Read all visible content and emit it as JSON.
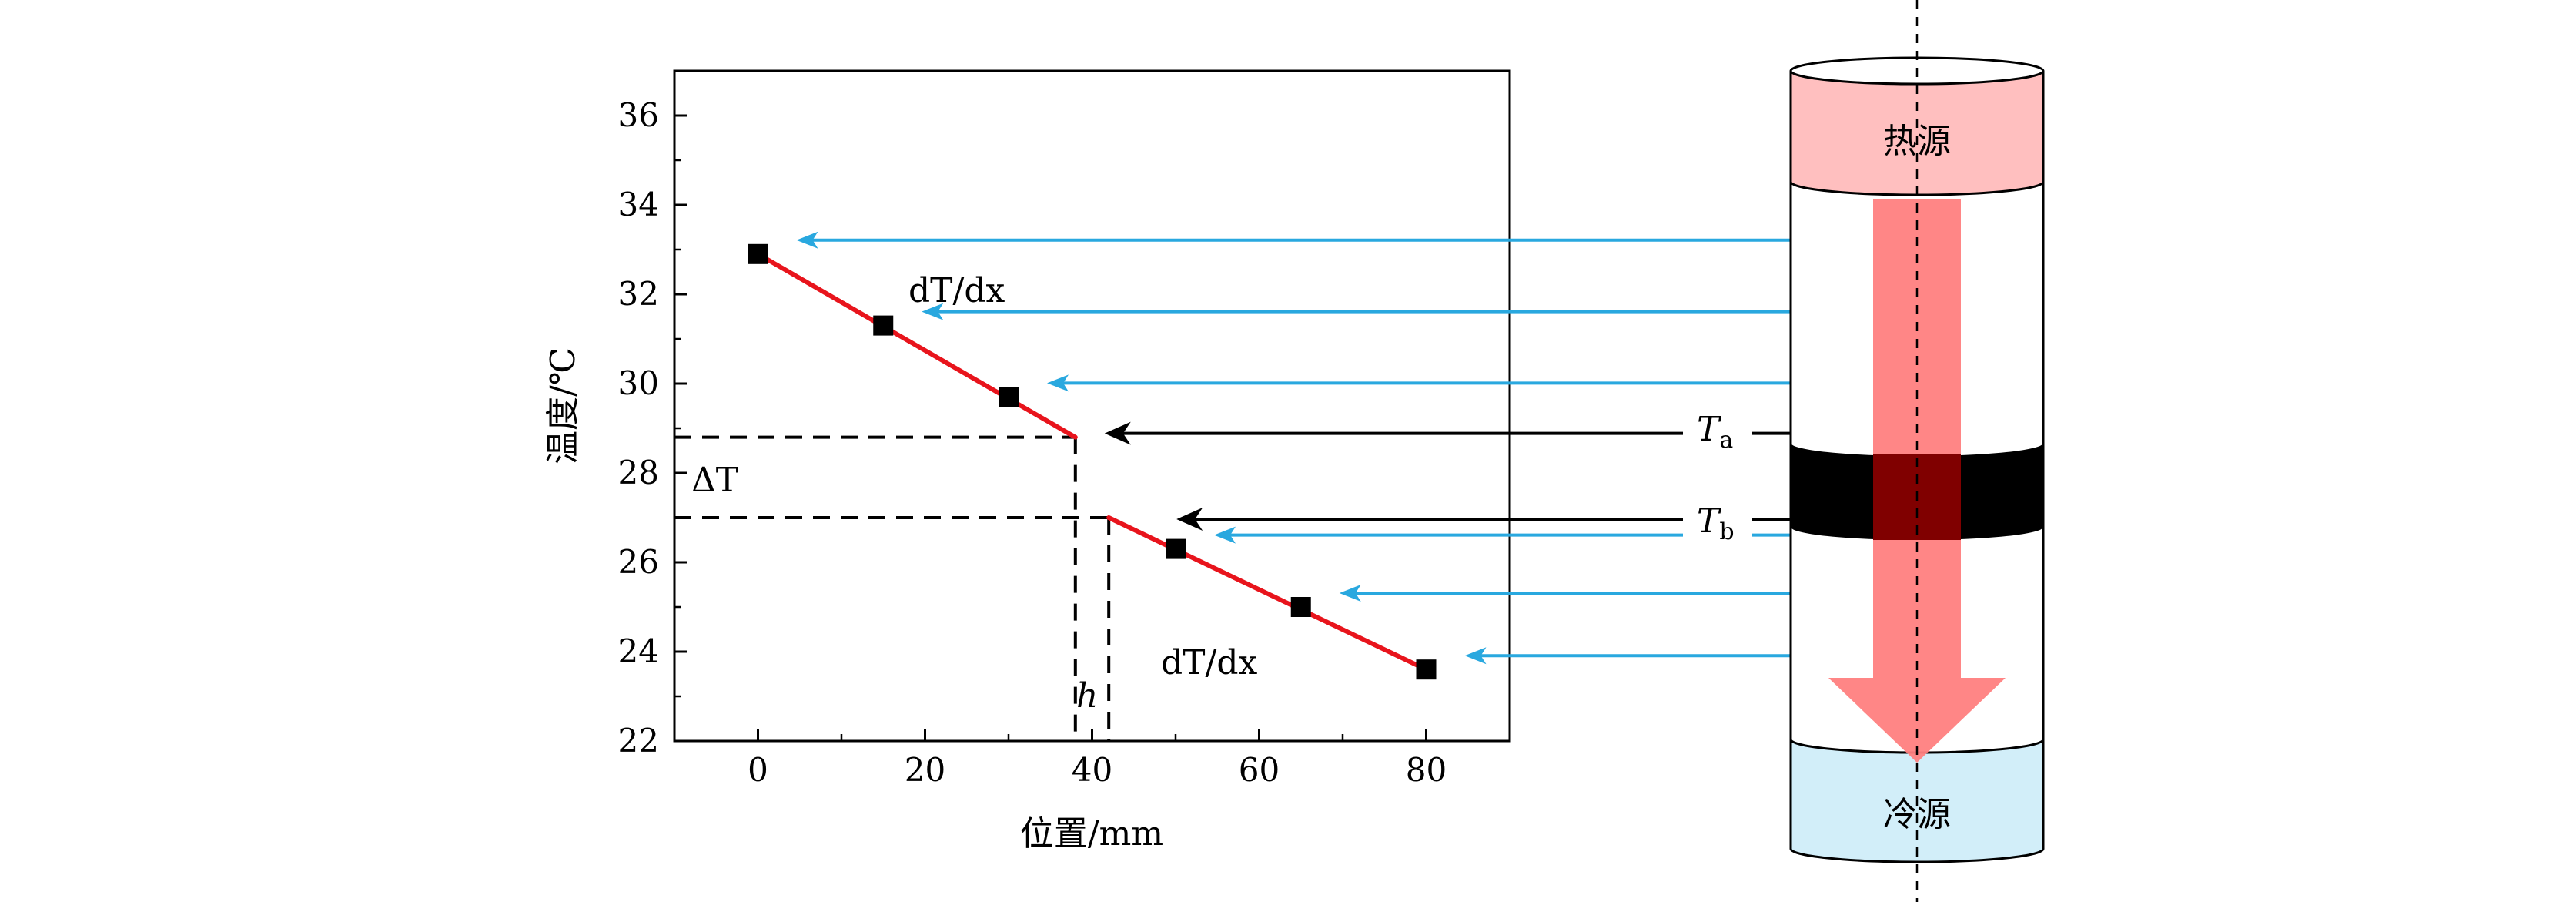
{
  "chart_data": {
    "type": "scatter",
    "xlabel": "位置/mm",
    "ylabel": "温度/℃",
    "xlim": [
      -10,
      90
    ],
    "ylim": [
      22,
      37
    ],
    "x_ticks": [
      0,
      20,
      40,
      60,
      80
    ],
    "y_ticks": [
      22,
      24,
      26,
      28,
      30,
      32,
      34,
      36
    ],
    "grid": false,
    "series": [
      {
        "points": [
          [
            0,
            32.9
          ],
          [
            15,
            31.3
          ],
          [
            30,
            29.7
          ],
          [
            50,
            26.3
          ],
          [
            65,
            25.0
          ],
          [
            80,
            23.6
          ]
        ]
      }
    ],
    "fit_lines": [
      {
        "x": [
          0,
          38
        ],
        "y": [
          32.9,
          28.8
        ]
      },
      {
        "x": [
          42,
          80
        ],
        "y": [
          27.0,
          23.6
        ]
      }
    ],
    "guides": {
      "Ta": {
        "x": 38,
        "y": 28.8
      },
      "Tb": {
        "x": 42,
        "y": 27.0
      }
    },
    "annotations": {
      "slope_upper": "dT/dx",
      "slope_lower": "dT/dx",
      "delta_t": "ΔT",
      "gap": "h",
      "ta": "Ta",
      "tb": "Tb"
    }
  },
  "apparatus": {
    "hot_source": "热源",
    "cold_source": "冷源"
  },
  "colors": {
    "fit_line": "#e8141c",
    "marker": "#000000",
    "blue_arrow": "#29a8df",
    "hot_fill": "#ffbfbf",
    "cold_fill": "#d2eef9",
    "flow_arrow": "#ff7f7f",
    "sample_band": "#000000",
    "sample_core": "#800000"
  }
}
